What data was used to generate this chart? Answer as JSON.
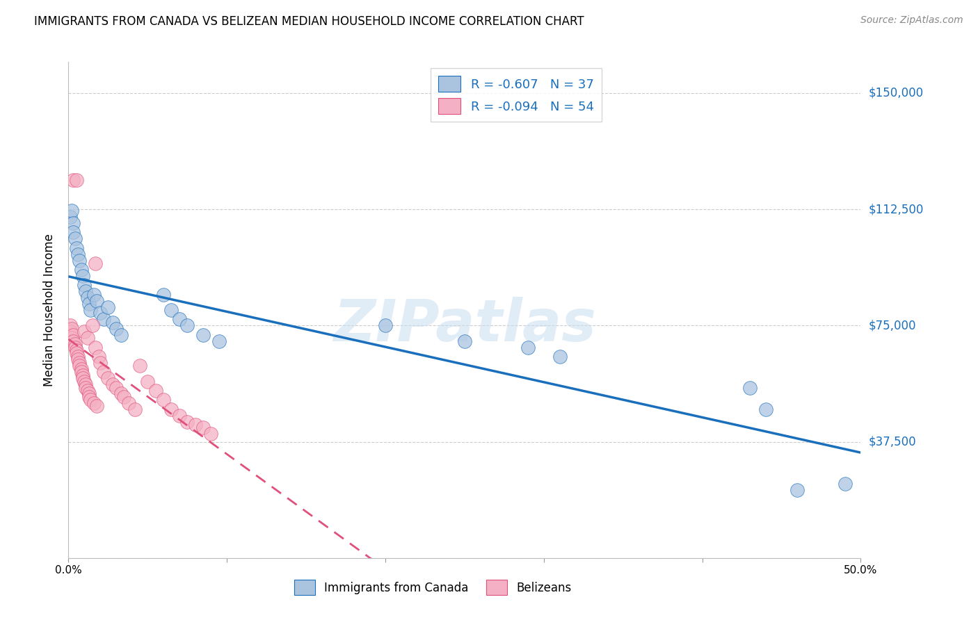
{
  "title": "IMMIGRANTS FROM CANADA VS BELIZEAN MEDIAN HOUSEHOLD INCOME CORRELATION CHART",
  "source": "Source: ZipAtlas.com",
  "ylabel": "Median Household Income",
  "legend_blue_r": "R = -0.607",
  "legend_blue_n": "N = 37",
  "legend_pink_r": "R = -0.094",
  "legend_pink_n": "N = 54",
  "legend_label_blue": "Immigrants from Canada",
  "legend_label_pink": "Belizeans",
  "blue_scatter_x": [
    0.001,
    0.002,
    0.003,
    0.003,
    0.004,
    0.005,
    0.006,
    0.007,
    0.008,
    0.009,
    0.01,
    0.011,
    0.012,
    0.013,
    0.014,
    0.016,
    0.018,
    0.02,
    0.022,
    0.025,
    0.028,
    0.03,
    0.033,
    0.06,
    0.065,
    0.07,
    0.075,
    0.085,
    0.095,
    0.2,
    0.25,
    0.29,
    0.31,
    0.43,
    0.44,
    0.46,
    0.49
  ],
  "blue_scatter_y": [
    110000,
    112000,
    108000,
    105000,
    103000,
    100000,
    98000,
    96000,
    93000,
    91000,
    88000,
    86000,
    84000,
    82000,
    80000,
    85000,
    83000,
    79000,
    77000,
    81000,
    76000,
    74000,
    72000,
    85000,
    80000,
    77000,
    75000,
    72000,
    70000,
    75000,
    70000,
    68000,
    65000,
    55000,
    48000,
    22000,
    24000
  ],
  "pink_scatter_x": [
    0.001,
    0.001,
    0.002,
    0.002,
    0.003,
    0.003,
    0.004,
    0.004,
    0.005,
    0.005,
    0.006,
    0.006,
    0.007,
    0.007,
    0.008,
    0.008,
    0.009,
    0.009,
    0.01,
    0.01,
    0.011,
    0.011,
    0.012,
    0.012,
    0.013,
    0.013,
    0.014,
    0.015,
    0.016,
    0.017,
    0.018,
    0.019,
    0.02,
    0.022,
    0.025,
    0.028,
    0.03,
    0.033,
    0.035,
    0.038,
    0.042,
    0.045,
    0.05,
    0.055,
    0.06,
    0.065,
    0.07,
    0.075,
    0.08,
    0.085,
    0.017,
    0.003,
    0.005,
    0.09
  ],
  "pink_scatter_y": [
    75000,
    73000,
    74000,
    71000,
    72000,
    70000,
    69000,
    68000,
    67000,
    66000,
    65000,
    64000,
    63000,
    62000,
    61000,
    60000,
    59000,
    58000,
    57000,
    73000,
    56000,
    55000,
    54000,
    71000,
    53000,
    52000,
    51000,
    75000,
    50000,
    68000,
    49000,
    65000,
    63000,
    60000,
    58000,
    56000,
    55000,
    53000,
    52000,
    50000,
    48000,
    62000,
    57000,
    54000,
    51000,
    48000,
    46000,
    44000,
    43000,
    42000,
    95000,
    122000,
    122000,
    40000
  ],
  "xlim": [
    0.0,
    0.5
  ],
  "ylim": [
    0,
    160000
  ],
  "yticks": [
    0,
    37500,
    75000,
    112500,
    150000
  ],
  "ytick_labels": [
    "",
    "$37,500",
    "$75,000",
    "$112,500",
    "$150,000"
  ],
  "xticks": [
    0.0,
    0.1,
    0.2,
    0.3,
    0.4,
    0.5
  ],
  "xtick_labels": [
    "0.0%",
    "",
    "",
    "",
    "",
    "50.0%"
  ],
  "blue_scatter_color": "#aac4e0",
  "pink_scatter_color": "#f4b0c4",
  "blue_line_color": "#1a6fbd",
  "pink_line_color": "#e0507a",
  "watermark_text": "ZIPatlas",
  "watermark_color": "#c8ddf0",
  "background_color": "#ffffff",
  "grid_color": "#cccccc"
}
